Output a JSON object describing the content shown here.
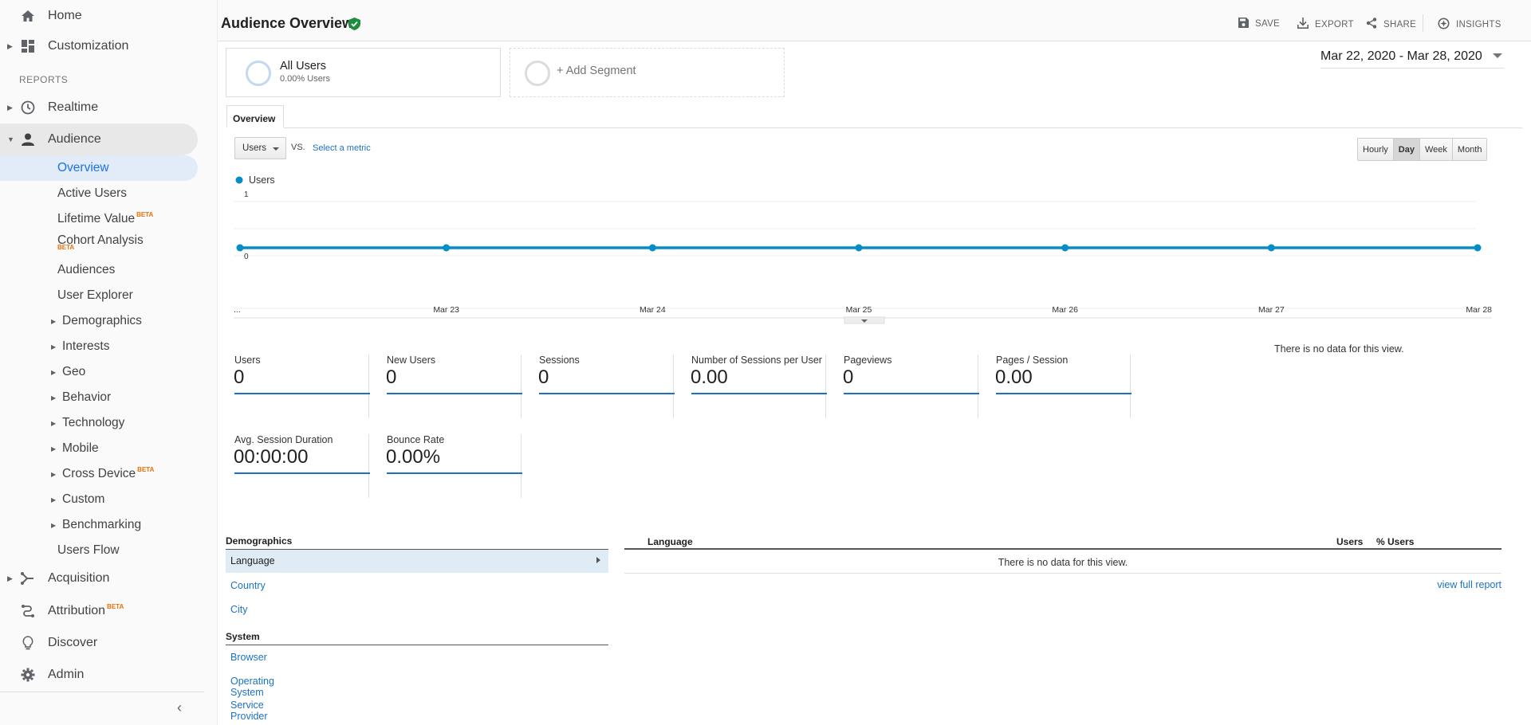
{
  "sidebar": {
    "home": "Home",
    "customization": "Customization",
    "reports_heading": "REPORTS",
    "realtime": "Realtime",
    "audience": "Audience",
    "audience_items": {
      "overview": "Overview",
      "active_users": "Active Users",
      "lifetime_value": "Lifetime Value",
      "cohort_analysis": "Cohort Analysis",
      "audiences": "Audiences",
      "user_explorer": "User Explorer",
      "demographics": "Demographics",
      "interests": "Interests",
      "geo": "Geo",
      "behavior": "Behavior",
      "technology": "Technology",
      "mobile": "Mobile",
      "cross_device": "Cross Device",
      "custom": "Custom",
      "benchmarking": "Benchmarking",
      "users_flow": "Users Flow"
    },
    "acquisition": "Acquisition",
    "attribution": "Attribution",
    "discover": "Discover",
    "admin": "Admin",
    "beta_badge": "BETA",
    "collapse_icon": "chevron-left-icon"
  },
  "header": {
    "title": "Audience Overview",
    "save": "SAVE",
    "export": "EXPORT",
    "share": "SHARE",
    "insights": "INSIGHTS"
  },
  "segments": {
    "all_users_name": "All Users",
    "all_users_pct": "0.00% Users",
    "add_segment": "+ Add Segment"
  },
  "date_range": "Mar 22, 2020 - Mar 28, 2020",
  "tabs": {
    "overview": "Overview"
  },
  "chart_controls": {
    "metric": "Users",
    "vs": "VS.",
    "select_metric": "Select a metric",
    "granularity": [
      "Hourly",
      "Day",
      "Week",
      "Month"
    ],
    "selected_granularity": "Day"
  },
  "chart_data": {
    "type": "line",
    "x": [
      "...",
      "Mar 23",
      "Mar 24",
      "Mar 25",
      "Mar 26",
      "Mar 27",
      "Mar 28"
    ],
    "series": [
      {
        "name": "Users",
        "values": [
          0,
          0,
          0,
          0,
          0,
          0,
          0
        ]
      }
    ],
    "y_ticks": [
      "1",
      "0"
    ],
    "ylim": [
      0,
      1
    ],
    "color": "#058dc7",
    "grid": true
  },
  "metrics": [
    {
      "label": "Users",
      "value": "0"
    },
    {
      "label": "New Users",
      "value": "0"
    },
    {
      "label": "Sessions",
      "value": "0"
    },
    {
      "label": "Number of Sessions per User",
      "value": "0.00"
    },
    {
      "label": "Pageviews",
      "value": "0"
    },
    {
      "label": "Pages / Session",
      "value": "0.00"
    },
    {
      "label": "Avg. Session Duration",
      "value": "00:00:00"
    },
    {
      "label": "Bounce Rate",
      "value": "0.00%"
    }
  ],
  "summary_no_data": "There is no data for this view.",
  "dimensions": {
    "demographics_heading": "Demographics",
    "language": "Language",
    "country": "Country",
    "city": "City",
    "system_heading": "System",
    "browser": "Browser",
    "operating_system": "Operating System",
    "service_provider": "Service Provider"
  },
  "language_table": {
    "col_language": "Language",
    "col_users": "Users",
    "col_pct_users": "% Users",
    "no_data": "There is no data for this view.",
    "view_full_report": "view full report"
  }
}
